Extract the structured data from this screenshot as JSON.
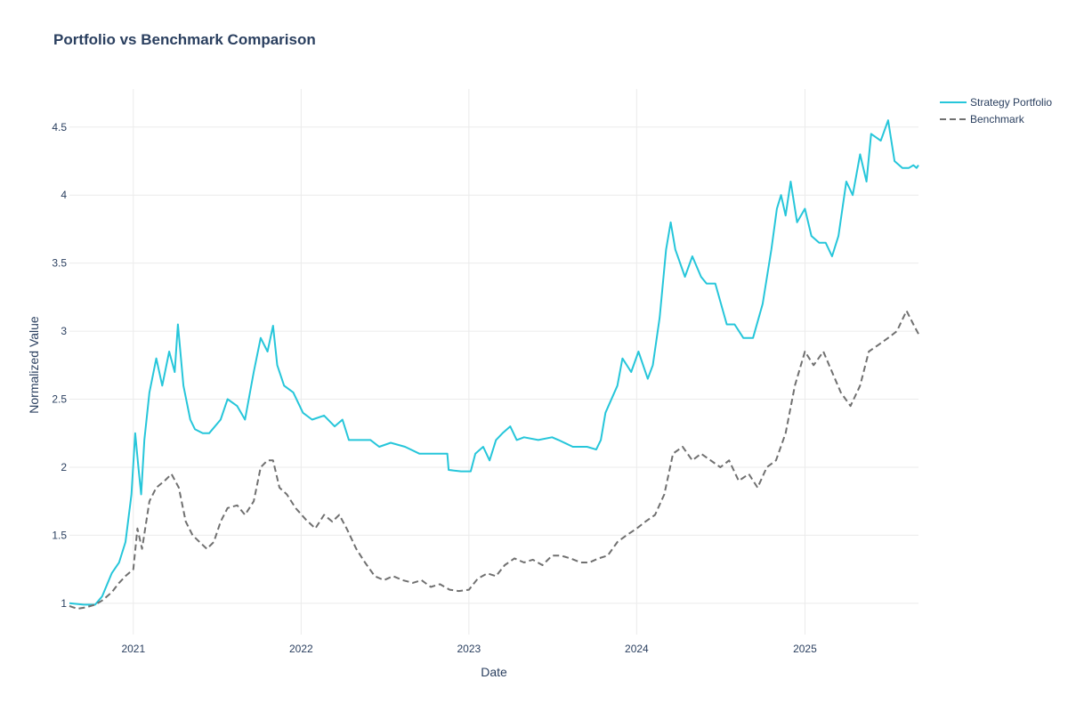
{
  "chart_data": {
    "type": "line",
    "title": "Portfolio vs Benchmark Comparison",
    "xlabel": "Date",
    "ylabel": "Normalized Value",
    "x_type": "date",
    "xlim": [
      "2020-08-15",
      "2025-09-05"
    ],
    "ylim": [
      0.77,
      4.78
    ],
    "x_ticks": [
      {
        "value": "2021-01-01",
        "label": "2021"
      },
      {
        "value": "2022-01-01",
        "label": "2022"
      },
      {
        "value": "2023-01-01",
        "label": "2023"
      },
      {
        "value": "2024-01-01",
        "label": "2024"
      },
      {
        "value": "2025-01-01",
        "label": "2025"
      }
    ],
    "y_ticks": [
      {
        "value": 1,
        "label": "1"
      },
      {
        "value": 1.5,
        "label": "1.5"
      },
      {
        "value": 2,
        "label": "2"
      },
      {
        "value": 2.5,
        "label": "2.5"
      },
      {
        "value": 3,
        "label": "3"
      },
      {
        "value": 3.5,
        "label": "3.5"
      },
      {
        "value": 4,
        "label": "4"
      },
      {
        "value": 4.5,
        "label": "4.5"
      }
    ],
    "grid": true,
    "legend_position": "top-right",
    "series": [
      {
        "name": "Strategy Portfolio",
        "color": "#26c6da",
        "dash": "solid",
        "x": [
          "2020-08-15",
          "2020-09-15",
          "2020-10-10",
          "2020-10-25",
          "2020-11-15",
          "2020-12-01",
          "2020-12-15",
          "2020-12-28",
          "2021-01-05",
          "2021-01-12",
          "2021-01-18",
          "2021-01-25",
          "2021-02-05",
          "2021-02-20",
          "2021-03-05",
          "2021-03-20",
          "2021-04-01",
          "2021-04-08",
          "2021-04-20",
          "2021-05-05",
          "2021-05-15",
          "2021-06-01",
          "2021-06-15",
          "2021-07-10",
          "2021-07-25",
          "2021-08-15",
          "2021-09-01",
          "2021-09-20",
          "2021-10-05",
          "2021-10-20",
          "2021-11-01",
          "2021-11-10",
          "2021-11-25",
          "2021-12-15",
          "2022-01-05",
          "2022-01-25",
          "2022-02-20",
          "2022-03-15",
          "2022-04-01",
          "2022-04-15",
          "2022-05-01",
          "2022-06-01",
          "2022-06-20",
          "2022-07-15",
          "2022-08-15",
          "2022-09-15",
          "2022-10-20",
          "2022-11-15",
          "2022-11-18",
          "2022-12-15",
          "2023-01-05",
          "2023-01-15",
          "2023-02-01",
          "2023-02-15",
          "2023-03-01",
          "2023-03-15",
          "2023-04-01",
          "2023-04-15",
          "2023-05-01",
          "2023-06-01",
          "2023-07-01",
          "2023-07-15",
          "2023-08-15",
          "2023-09-15",
          "2023-10-05",
          "2023-10-15",
          "2023-10-25",
          "2023-11-20",
          "2023-12-01",
          "2023-12-20",
          "2024-01-05",
          "2024-01-25",
          "2024-02-05",
          "2024-02-20",
          "2024-03-05",
          "2024-03-15",
          "2024-03-25",
          "2024-04-15",
          "2024-05-01",
          "2024-05-20",
          "2024-06-01",
          "2024-06-20",
          "2024-07-15",
          "2024-08-01",
          "2024-08-20",
          "2024-09-10",
          "2024-10-01",
          "2024-10-20",
          "2024-11-01",
          "2024-11-10",
          "2024-11-20",
          "2024-12-01",
          "2024-12-15",
          "2025-01-01",
          "2025-01-15",
          "2025-02-01",
          "2025-02-15",
          "2025-03-01",
          "2025-03-15",
          "2025-04-01",
          "2025-04-15",
          "2025-05-01",
          "2025-05-15",
          "2025-05-25",
          "2025-06-15",
          "2025-07-01",
          "2025-07-15",
          "2025-08-01",
          "2025-08-15",
          "2025-08-25",
          "2025-09-01",
          "2025-09-05"
        ],
        "y": [
          1.0,
          0.99,
          0.99,
          1.05,
          1.22,
          1.3,
          1.45,
          1.8,
          2.25,
          2.0,
          1.8,
          2.2,
          2.55,
          2.8,
          2.6,
          2.85,
          2.7,
          3.05,
          2.6,
          2.35,
          2.28,
          2.25,
          2.25,
          2.35,
          2.5,
          2.45,
          2.35,
          2.7,
          2.95,
          2.85,
          3.04,
          2.75,
          2.6,
          2.55,
          2.4,
          2.35,
          2.38,
          2.3,
          2.35,
          2.2,
          2.2,
          2.2,
          2.15,
          2.18,
          2.15,
          2.1,
          2.1,
          2.1,
          1.98,
          1.97,
          1.97,
          2.1,
          2.15,
          2.05,
          2.2,
          2.25,
          2.3,
          2.2,
          2.22,
          2.2,
          2.22,
          2.2,
          2.15,
          2.15,
          2.13,
          2.2,
          2.4,
          2.6,
          2.8,
          2.7,
          2.85,
          2.65,
          2.75,
          3.1,
          3.6,
          3.8,
          3.6,
          3.4,
          3.55,
          3.4,
          3.35,
          3.35,
          3.05,
          3.05,
          2.95,
          2.95,
          3.2,
          3.6,
          3.9,
          4.0,
          3.85,
          4.1,
          3.8,
          3.9,
          3.7,
          3.65,
          3.65,
          3.55,
          3.7,
          4.1,
          4.0,
          4.3,
          4.1,
          4.45,
          4.4,
          4.55,
          4.25,
          4.2,
          4.2,
          4.22,
          4.2,
          4.22
        ]
      },
      {
        "name": "Benchmark",
        "color": "#707070",
        "dash": "dashed",
        "x": [
          "2020-08-15",
          "2020-09-01",
          "2020-09-20",
          "2020-10-10",
          "2020-10-25",
          "2020-11-15",
          "2020-12-01",
          "2020-12-15",
          "2021-01-01",
          "2021-01-10",
          "2021-01-20",
          "2021-02-05",
          "2021-02-20",
          "2021-03-10",
          "2021-03-25",
          "2021-04-10",
          "2021-04-25",
          "2021-05-10",
          "2021-05-25",
          "2021-06-10",
          "2021-06-25",
          "2021-07-10",
          "2021-07-25",
          "2021-08-15",
          "2021-09-01",
          "2021-09-20",
          "2021-10-05",
          "2021-10-20",
          "2021-11-01",
          "2021-11-15",
          "2021-12-01",
          "2021-12-20",
          "2022-01-10",
          "2022-02-01",
          "2022-02-20",
          "2022-03-10",
          "2022-03-25",
          "2022-04-10",
          "2022-05-01",
          "2022-05-20",
          "2022-06-10",
          "2022-06-30",
          "2022-07-20",
          "2022-08-10",
          "2022-09-01",
          "2022-09-20",
          "2022-10-10",
          "2022-10-30",
          "2022-11-20",
          "2022-12-10",
          "2023-01-01",
          "2023-01-20",
          "2023-02-10",
          "2023-03-01",
          "2023-03-20",
          "2023-04-10",
          "2023-05-01",
          "2023-05-20",
          "2023-06-10",
          "2023-07-01",
          "2023-07-20",
          "2023-08-10",
          "2023-09-01",
          "2023-09-20",
          "2023-10-10",
          "2023-10-30",
          "2023-11-20",
          "2023-12-10",
          "2024-01-01",
          "2024-01-20",
          "2024-02-10",
          "2024-03-01",
          "2024-03-20",
          "2024-04-10",
          "2024-05-01",
          "2024-05-20",
          "2024-06-10",
          "2024-07-01",
          "2024-07-20",
          "2024-08-10",
          "2024-09-01",
          "2024-09-20",
          "2024-10-10",
          "2024-10-30",
          "2024-11-20",
          "2024-12-10",
          "2025-01-01",
          "2025-01-20",
          "2025-02-10",
          "2025-03-01",
          "2025-03-20",
          "2025-04-10",
          "2025-05-01",
          "2025-05-20",
          "2025-06-10",
          "2025-07-01",
          "2025-07-20",
          "2025-08-10",
          "2025-08-25",
          "2025-09-05"
        ],
        "y": [
          0.98,
          0.96,
          0.97,
          0.99,
          1.02,
          1.08,
          1.15,
          1.2,
          1.25,
          1.55,
          1.4,
          1.75,
          1.85,
          1.9,
          1.95,
          1.85,
          1.6,
          1.5,
          1.45,
          1.4,
          1.45,
          1.6,
          1.7,
          1.72,
          1.65,
          1.75,
          2.0,
          2.05,
          2.05,
          1.85,
          1.8,
          1.7,
          1.62,
          1.55,
          1.65,
          1.6,
          1.65,
          1.55,
          1.4,
          1.3,
          1.2,
          1.17,
          1.2,
          1.17,
          1.15,
          1.17,
          1.12,
          1.14,
          1.1,
          1.09,
          1.1,
          1.18,
          1.22,
          1.2,
          1.28,
          1.33,
          1.3,
          1.32,
          1.28,
          1.35,
          1.35,
          1.33,
          1.3,
          1.3,
          1.33,
          1.35,
          1.45,
          1.5,
          1.55,
          1.6,
          1.65,
          1.8,
          2.1,
          2.15,
          2.05,
          2.1,
          2.05,
          2.0,
          2.05,
          1.9,
          1.95,
          1.85,
          2.0,
          2.05,
          2.25,
          2.6,
          2.85,
          2.75,
          2.85,
          2.7,
          2.55,
          2.45,
          2.6,
          2.85,
          2.9,
          2.95,
          3.0,
          3.15,
          3.05,
          2.98
        ]
      }
    ]
  }
}
